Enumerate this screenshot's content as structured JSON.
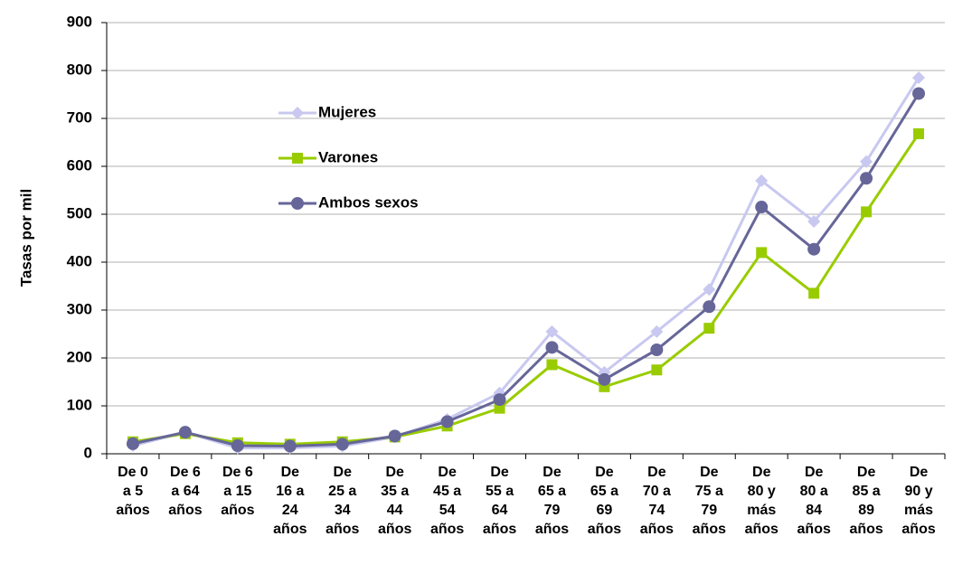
{
  "chart_data": {
    "type": "line",
    "y_label": "Tasas por mil",
    "categories": [
      "De 0\na 5\naños",
      "De 6\na 64\naños",
      "De 6\na 15\naños",
      "De\n16 a\n24\naños",
      "De\n25 a\n34\naños",
      "De\n35 a\n44\naños",
      "De\n45 a\n54\naños",
      "De\n55 a\n64\naños",
      "De\n65 a\n79\naños",
      "De\n65 a\n69\naños",
      "De\n70 a\n74\naños",
      "De\n75 a\n79\naños",
      "De\n80 y\nmás\naños",
      "De\n80 a\n84\naños",
      "De\n85 a\n89\naños",
      "De\n90 y\nmás\naños"
    ],
    "series": [
      {
        "name": "Mujeres",
        "color": "#c8c8f0",
        "marker": "diamond",
        "values": [
          17,
          45,
          12,
          12,
          16,
          35,
          72,
          127,
          255,
          170,
          255,
          343,
          570,
          485,
          610,
          785
        ]
      },
      {
        "name": "Varones",
        "color": "#99cc00",
        "marker": "square",
        "values": [
          25,
          42,
          23,
          20,
          25,
          35,
          58,
          95,
          186,
          140,
          175,
          262,
          420,
          335,
          505,
          668
        ]
      },
      {
        "name": "Ambos sexos",
        "color": "#666699",
        "marker": "circle",
        "values": [
          21,
          45,
          17,
          16,
          20,
          37,
          67,
          113,
          222,
          155,
          217,
          307,
          515,
          427,
          575,
          752
        ]
      }
    ],
    "ylim": [
      0,
      900
    ],
    "yticks": [
      0,
      100,
      200,
      300,
      400,
      500,
      600,
      700,
      800,
      900
    ],
    "grid": true
  }
}
